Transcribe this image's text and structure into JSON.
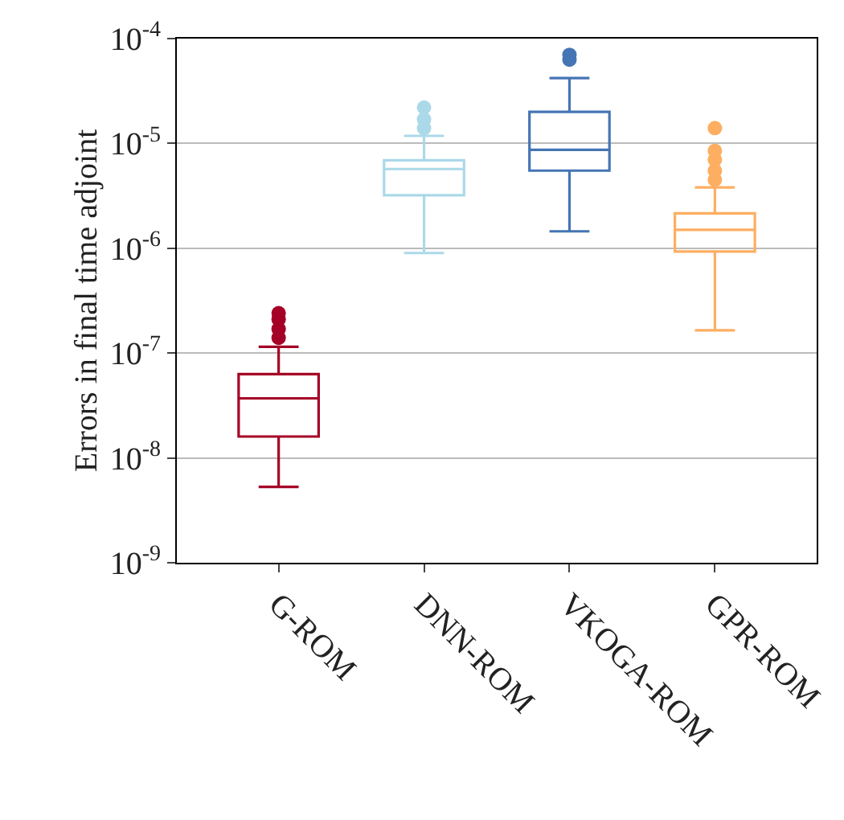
{
  "chart_data": {
    "type": "box",
    "ylabel": "Errors in final time adjoint",
    "categories": [
      "G-ROM",
      "DNN-ROM",
      "VKOGA-ROM",
      "GPR-ROM"
    ],
    "colors": [
      "#a50026",
      "#abd9e9",
      "#4575b4",
      "#fdae61"
    ],
    "boxes": [
      {
        "low": 5.3e-09,
        "q1": 1.6e-08,
        "median": 3.7e-08,
        "q3": 6.3e-08,
        "high": 1.15e-07,
        "outliers": [
          1.4e-07,
          1.7e-07,
          2.1e-07,
          2.4e-07
        ]
      },
      {
        "low": 9e-07,
        "q1": 3.2e-06,
        "median": 5.7e-06,
        "q3": 6.9e-06,
        "high": 1.18e-05,
        "outliers": [
          1.4e-05,
          1.7e-05,
          2.2e-05
        ]
      },
      {
        "low": 1.45e-06,
        "q1": 5.5e-06,
        "median": 8.7e-06,
        "q3": 2e-05,
        "high": 4.2e-05,
        "outliers": [
          6.3e-05,
          7e-05
        ]
      },
      {
        "low": 1.65e-07,
        "q1": 9.3e-07,
        "median": 1.5e-06,
        "q3": 2.15e-06,
        "high": 3.8e-06,
        "outliers": [
          4.5e-06,
          5.5e-06,
          7e-06,
          8.5e-06,
          1.4e-05
        ]
      }
    ],
    "log": true,
    "ylim": [
      1e-09,
      0.0001
    ],
    "yticks": [
      {
        "value": 1e-09,
        "label": "10$^{-9}$"
      },
      {
        "value": 1e-08,
        "label": "10$^{-8}$"
      },
      {
        "value": 1e-07,
        "label": "10$^{-7}$"
      },
      {
        "value": 1e-06,
        "label": "10$^{-6}$"
      },
      {
        "value": 1e-05,
        "label": "10$^{-5}$"
      },
      {
        "value": 0.0001,
        "label": "10$^{-4}$"
      }
    ],
    "grid": "y",
    "marker": "circle"
  }
}
